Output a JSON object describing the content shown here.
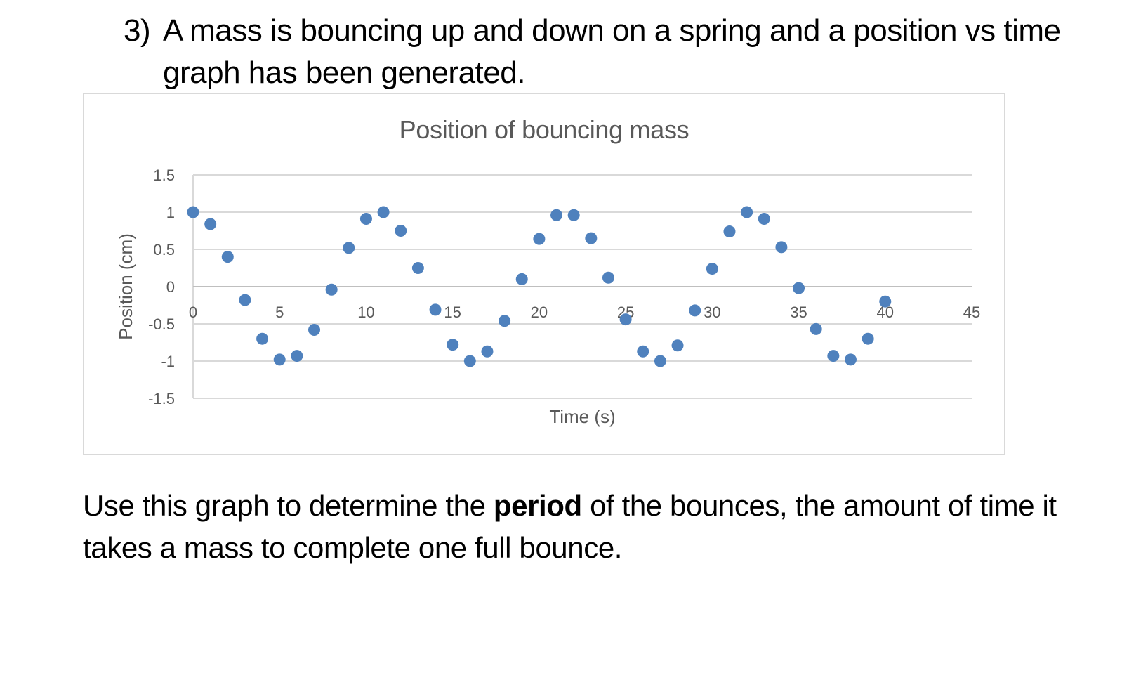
{
  "question": {
    "number": "3)",
    "text": "A mass is bouncing up and down on a spring and a position vs time graph has been generated."
  },
  "instructions": {
    "before": "Use this graph to determine the ",
    "bold": "period",
    "after": " of the bounces, the amount of time it takes a mass to complete one full bounce."
  },
  "colors": {
    "marker": "#4f81bd",
    "gridline": "#d9d9d9",
    "axis_text": "#595959",
    "frame": "#d9d9d9"
  },
  "chart_data": {
    "type": "scatter",
    "title": "Position of bouncing mass",
    "xlabel": "Time (s)",
    "ylabel": "Position (cm)",
    "xlim": [
      0,
      45
    ],
    "ylim": [
      -1.5,
      1.5
    ],
    "x_ticks": [
      0,
      5,
      10,
      15,
      20,
      25,
      30,
      35,
      40,
      45
    ],
    "y_ticks": [
      1.5,
      1,
      0.5,
      0,
      -0.5,
      -1,
      -1.5
    ],
    "x_tick_labels": [
      "0",
      "5",
      "10",
      "15",
      "20",
      "25",
      "30",
      "35",
      "40",
      "45"
    ],
    "y_tick_labels": [
      "1.5",
      "1",
      "0.5",
      "0",
      "-0.5",
      "-1",
      "-1.5"
    ],
    "grid": true,
    "legend": "none",
    "series": [
      {
        "name": "Position",
        "x": [
          0,
          1,
          2,
          3,
          4,
          5,
          6,
          7,
          8,
          9,
          10,
          11,
          12,
          13,
          14,
          15,
          16,
          17,
          18,
          19,
          20,
          21,
          22,
          23,
          24,
          25,
          26,
          27,
          28,
          29,
          30,
          31,
          32,
          33,
          34,
          35,
          36,
          37,
          38,
          39,
          40
        ],
        "values": [
          1.0,
          0.84,
          0.4,
          -0.18,
          -0.7,
          -0.98,
          -0.93,
          -0.58,
          -0.04,
          0.52,
          0.91,
          1.0,
          0.75,
          0.25,
          -0.31,
          -0.78,
          -1.0,
          -0.87,
          -0.46,
          0.1,
          0.64,
          0.96,
          0.96,
          0.65,
          0.12,
          -0.44,
          -0.87,
          -1.0,
          -0.79,
          -0.32,
          0.24,
          0.74,
          1.0,
          0.91,
          0.53,
          -0.02,
          -0.57,
          -0.93,
          -0.98,
          -0.7,
          -0.2
        ]
      }
    ]
  }
}
